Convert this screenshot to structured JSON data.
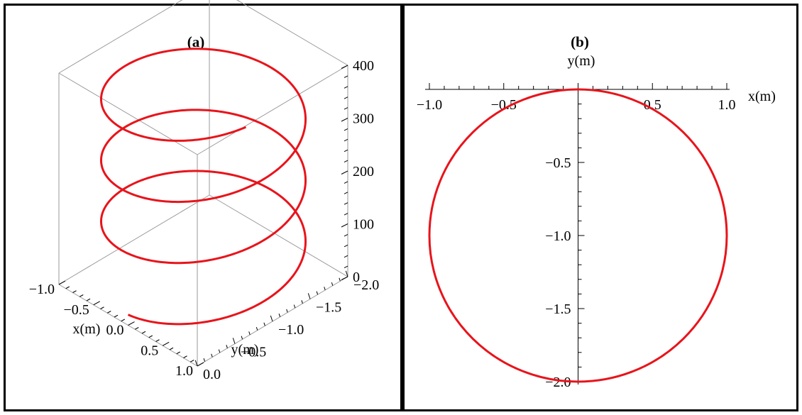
{
  "chart_data": [
    {
      "type": "line",
      "title": "(a)",
      "xlabel": "x(m)",
      "ylabel": "y(m)",
      "zlabel": "",
      "xlim": [
        -1.0,
        1.0
      ],
      "ylim": [
        -2.0,
        0.0
      ],
      "zlim": [
        0,
        400
      ],
      "x_ticks": [
        "−1.0",
        "−0.5",
        "0.0",
        "0.5",
        "1.0"
      ],
      "y_ticks": [
        "−2.0",
        "−1.5",
        "−1.0",
        "−0.5",
        "0.0"
      ],
      "z_ticks": [
        "0",
        "100",
        "200",
        "300",
        "400"
      ],
      "series": [
        {
          "color": "#e8141b",
          "description": "helix x = sin(t), y = cos(t) - 1, z rises from about 20 to about 390 over about 3.2 turns",
          "turns": 3.2,
          "z_start": 20,
          "z_end": 390
        }
      ]
    },
    {
      "type": "line",
      "title": "(b)",
      "xlabel": "x(m)",
      "ylabel": "y(m)",
      "xlim": [
        -1.0,
        1.0
      ],
      "ylim": [
        -2.0,
        0.0
      ],
      "x_ticks": [
        "−1.0",
        "−0.5",
        "0.5",
        "1.0"
      ],
      "y_ticks": [
        "−0.5",
        "−1.0",
        "−1.5",
        "−2.0"
      ],
      "series": [
        {
          "color": "#e8141b",
          "description": "circle of radius 1.0 centered at (0, -1)",
          "center": [
            0,
            -1
          ],
          "radius": 1.0
        }
      ]
    }
  ]
}
